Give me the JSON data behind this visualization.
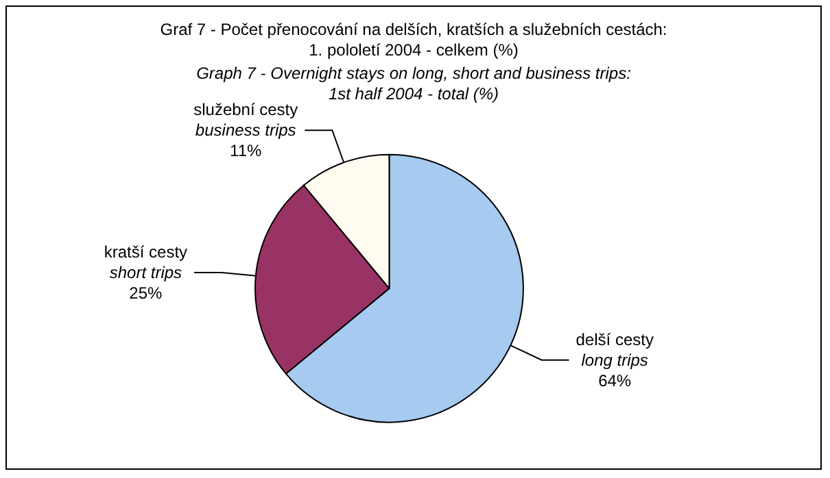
{
  "chart_data": {
    "type": "pie",
    "title": "Graf 7 - Počet přenocování na delších, kratších a služebních cestách:\n1. pololetí 2004 - celkem (%)",
    "subtitle": "Graph 7 - Overnight stays on long, short and business trips:\n1st half 2004 - total (%)",
    "categories": [
      "delší cesty\nlong trips",
      "kratší cesty\nshort trips",
      "služební cesty\nbusiness trips"
    ],
    "values": [
      64,
      25,
      11
    ],
    "colors": [
      "#a6caf0",
      "#993366",
      "#fffbf0"
    ],
    "value_labels": [
      "64%",
      "25%",
      "11%"
    ],
    "legend": false
  }
}
